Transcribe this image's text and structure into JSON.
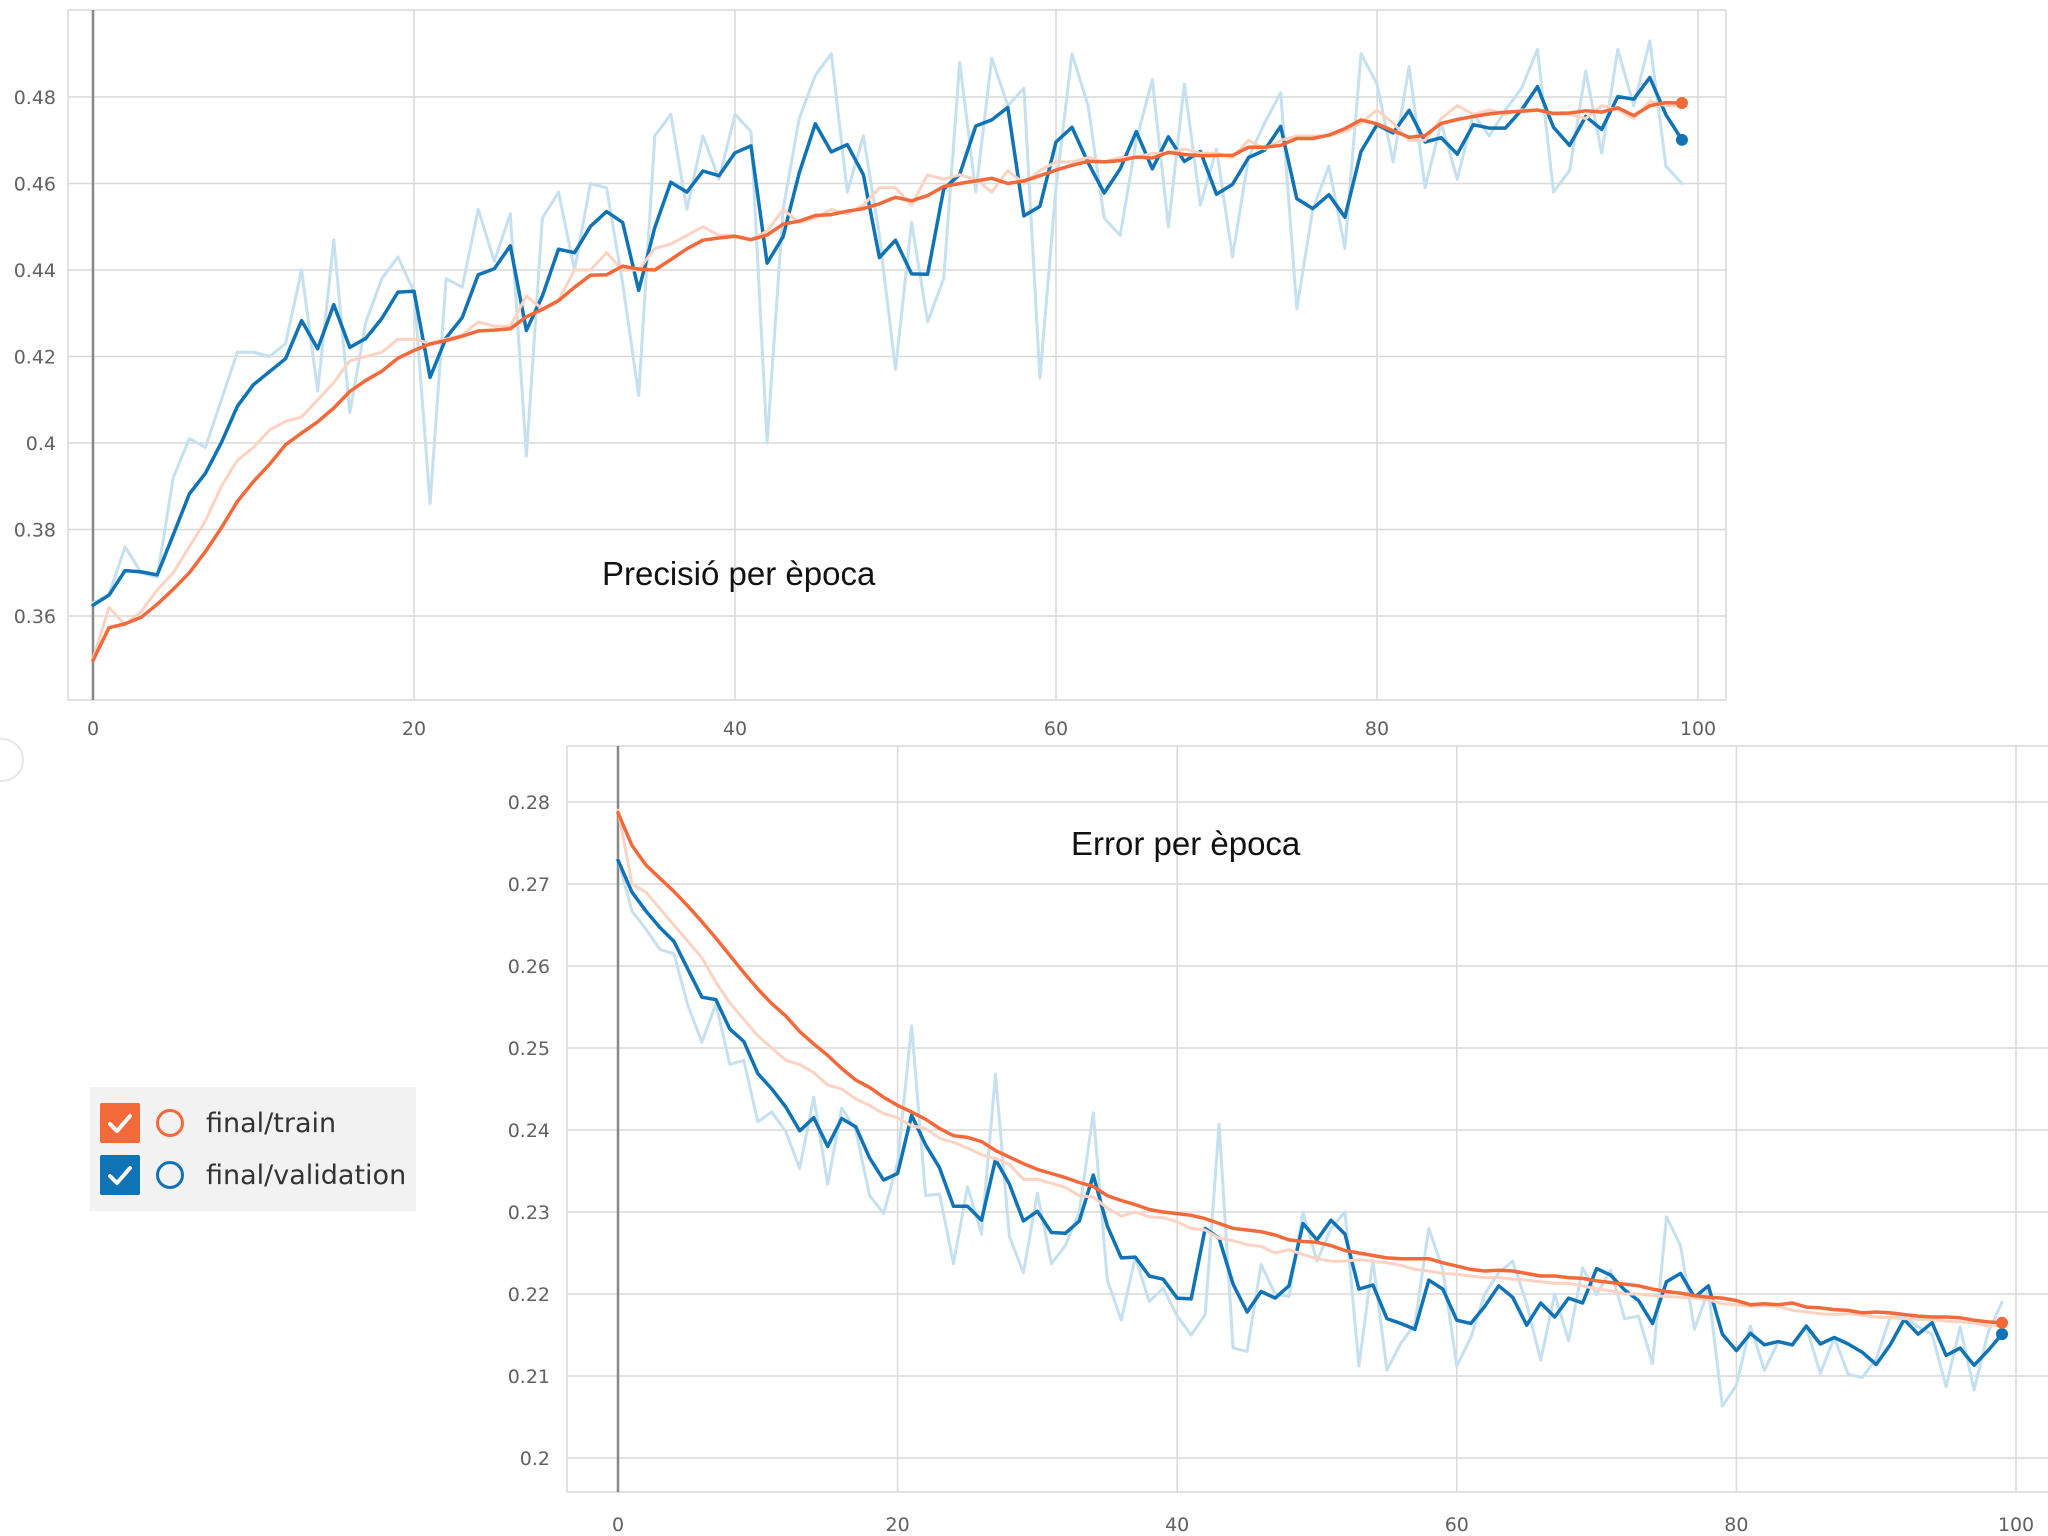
{
  "legend": {
    "items": [
      {
        "label": "final/train",
        "color": "#f4693a",
        "checked": true
      },
      {
        "label": "final/validation",
        "color": "#0f73b5",
        "checked": true
      }
    ]
  },
  "styles": {
    "train_color": "#f4693a",
    "train_raw_color": "#fcd3c3",
    "validation_color": "#0f73b5",
    "validation_raw_color": "#c5e0ee",
    "grid_color": "#d9d9d9",
    "axis_color": "#888888"
  },
  "chart_data": [
    {
      "type": "line",
      "title": "Precisió per època",
      "xlabel": "",
      "ylabel": "",
      "xlim": [
        0,
        100
      ],
      "ylim": [
        0.346,
        0.4985
      ],
      "xticks": [
        "0",
        "20",
        "40",
        "60",
        "80",
        "100"
      ],
      "yticks": [
        "0.36",
        "0.38",
        "0.4",
        "0.42",
        "0.44",
        "0.46",
        "0.48"
      ],
      "grid": true,
      "series": [
        {
          "name": "final/validation",
          "kind": "raw",
          "x_start": 0,
          "values": [
            0.363,
            0.365,
            0.376,
            0.37,
            0.369,
            0.392,
            0.401,
            0.399,
            0.41,
            0.421,
            0.421,
            0.42,
            0.423,
            0.44,
            0.412,
            0.447,
            0.407,
            0.428,
            0.438,
            0.443,
            0.435,
            0.386,
            0.438,
            0.436,
            0.454,
            0.442,
            0.453,
            0.397,
            0.452,
            0.458,
            0.44,
            0.46,
            0.459,
            0.437,
            0.411,
            0.471,
            0.476,
            0.454,
            0.471,
            0.461,
            0.476,
            0.472,
            0.4,
            0.454,
            0.475,
            0.485,
            0.49,
            0.458,
            0.471,
            0.448,
            0.417,
            0.451,
            0.428,
            0.438,
            0.488,
            0.458,
            0.489,
            0.478,
            0.482,
            0.415,
            0.459,
            0.49,
            0.478,
            0.452,
            0.448,
            0.47,
            0.484,
            0.45,
            0.483,
            0.455,
            0.468,
            0.443,
            0.466,
            0.474,
            0.481,
            0.431,
            0.454,
            0.464,
            0.445,
            0.49,
            0.483,
            0.465,
            0.487,
            0.459,
            0.474,
            0.461,
            0.476,
            0.471,
            0.477,
            0.482,
            0.491,
            0.458,
            0.463,
            0.486,
            0.467,
            0.491,
            0.478,
            0.493,
            0.464,
            0.46
          ]
        },
        {
          "name": "final/validation",
          "kind": "smoothed",
          "x_start": 0,
          "values": [
            0.3625,
            0.3648,
            0.3705,
            0.3702,
            0.3695,
            0.3788,
            0.3882,
            0.393,
            0.4001,
            0.4085,
            0.4135,
            0.4165,
            0.4195,
            0.4283,
            0.4218,
            0.432,
            0.4221,
            0.4242,
            0.4288,
            0.4349,
            0.4351,
            0.4152,
            0.4243,
            0.429,
            0.4389,
            0.4403,
            0.4456,
            0.426,
            0.434,
            0.4448,
            0.444,
            0.4501,
            0.4535,
            0.451,
            0.4353,
            0.4498,
            0.4603,
            0.458,
            0.4629,
            0.4618,
            0.4671,
            0.4687,
            0.4416,
            0.4477,
            0.4624,
            0.4738,
            0.4673,
            0.469,
            0.462,
            0.4429,
            0.4469,
            0.4391,
            0.439,
            0.4587,
            0.4621,
            0.4733,
            0.4747,
            0.4776,
            0.4525,
            0.4547,
            0.4696,
            0.473,
            0.4648,
            0.4578,
            0.4634,
            0.472,
            0.4634,
            0.4708,
            0.4651,
            0.4674,
            0.4575,
            0.4598,
            0.466,
            0.4677,
            0.4732,
            0.4565,
            0.4542,
            0.4574,
            0.4522,
            0.4674,
            0.4736,
            0.4717,
            0.4769,
            0.4696,
            0.4706,
            0.4668,
            0.4736,
            0.4728,
            0.4728,
            0.477,
            0.4824,
            0.473,
            0.4688,
            0.4755,
            0.4725,
            0.4801,
            0.4795,
            0.4845,
            0.4759,
            0.4701
          ]
        },
        {
          "name": "final/train",
          "kind": "raw",
          "x_start": 0,
          "values": [
            0.35,
            0.362,
            0.358,
            0.361,
            0.366,
            0.37,
            0.376,
            0.382,
            0.39,
            0.396,
            0.399,
            0.403,
            0.405,
            0.406,
            0.41,
            0.414,
            0.419,
            0.42,
            0.421,
            0.424,
            0.424,
            0.423,
            0.424,
            0.425,
            0.428,
            0.427,
            0.427,
            0.434,
            0.431,
            0.433,
            0.44,
            0.44,
            0.444,
            0.44,
            0.44,
            0.445,
            0.446,
            0.448,
            0.45,
            0.448,
            0.448,
            0.447,
            0.449,
            0.454,
            0.451,
            0.452,
            0.454,
            0.453,
            0.455,
            0.459,
            0.459,
            0.455,
            0.462,
            0.461,
            0.462,
            0.461,
            0.458,
            0.463,
            0.46,
            0.463,
            0.465,
            0.465,
            0.466,
            0.465,
            0.466,
            0.466,
            0.467,
            0.467,
            0.468,
            0.467,
            0.467,
            0.466,
            0.47,
            0.468,
            0.47,
            0.471,
            0.471,
            0.471,
            0.472,
            0.474,
            0.477,
            0.474,
            0.47,
            0.47,
            0.475,
            0.478,
            0.476,
            0.477,
            0.476,
            0.477,
            0.477,
            0.476,
            0.476,
            0.475,
            0.478,
            0.477,
            0.475,
            0.479,
            0.478,
            0.478
          ]
        },
        {
          "name": "final/train",
          "kind": "smoothed",
          "x_start": 0,
          "values": [
            0.3497,
            0.3573,
            0.3582,
            0.3597,
            0.3627,
            0.3662,
            0.37,
            0.3749,
            0.3804,
            0.3865,
            0.3911,
            0.3951,
            0.3996,
            0.4023,
            0.4049,
            0.4081,
            0.4119,
            0.4145,
            0.4166,
            0.4196,
            0.4214,
            0.4229,
            0.4237,
            0.4247,
            0.4259,
            0.4261,
            0.4264,
            0.4292,
            0.4309,
            0.4329,
            0.436,
            0.4388,
            0.4389,
            0.4409,
            0.4402,
            0.44,
            0.4424,
            0.4449,
            0.4469,
            0.4474,
            0.4478,
            0.447,
            0.4481,
            0.4506,
            0.4513,
            0.4526,
            0.4528,
            0.4536,
            0.4542,
            0.4553,
            0.4568,
            0.456,
            0.4572,
            0.4593,
            0.46,
            0.4606,
            0.4612,
            0.46,
            0.4606,
            0.4618,
            0.4631,
            0.4642,
            0.4651,
            0.465,
            0.4653,
            0.4661,
            0.4659,
            0.4672,
            0.4667,
            0.4664,
            0.4665,
            0.4665,
            0.4684,
            0.4684,
            0.4688,
            0.4704,
            0.4704,
            0.4712,
            0.4727,
            0.4747,
            0.4738,
            0.4722,
            0.4707,
            0.4711,
            0.4739,
            0.4748,
            0.4755,
            0.4761,
            0.4765,
            0.4767,
            0.477,
            0.4762,
            0.4763,
            0.4768,
            0.4765,
            0.4775,
            0.4757,
            0.478,
            0.4787,
            0.4786
          ]
        }
      ]
    },
    {
      "type": "line",
      "title": "Error per època",
      "xlabel": "",
      "ylabel": "",
      "xlim": [
        0,
        100
      ],
      "ylim": [
        0.1966,
        0.2861
      ],
      "xticks": [
        "0",
        "20",
        "40",
        "60",
        "80",
        "100"
      ],
      "yticks": [
        "0.2",
        "0.21",
        "0.22",
        "0.23",
        "0.24",
        "0.25",
        "0.26",
        "0.27",
        "0.28"
      ],
      "grid": true,
      "series": [
        {
          "name": "final/validation",
          "kind": "raw",
          "x_start": 0,
          "values": [
            0.273,
            0.2667,
            0.2645,
            0.262,
            0.2615,
            0.2552,
            0.2507,
            0.2554,
            0.248,
            0.2485,
            0.241,
            0.2422,
            0.2398,
            0.2353,
            0.244,
            0.2334,
            0.2427,
            0.24,
            0.232,
            0.2298,
            0.236,
            0.2527,
            0.232,
            0.2322,
            0.2237,
            0.2331,
            0.2273,
            0.2468,
            0.227,
            0.2226,
            0.2323,
            0.2237,
            0.2259,
            0.23,
            0.2421,
            0.2217,
            0.2168,
            0.2245,
            0.2191,
            0.2207,
            0.2173,
            0.215,
            0.2175,
            0.2407,
            0.2134,
            0.213,
            0.2236,
            0.22,
            0.2197,
            0.23,
            0.224,
            0.228,
            0.23,
            0.2112,
            0.2241,
            0.2107,
            0.214,
            0.2163,
            0.228,
            0.223,
            0.2112,
            0.2147,
            0.22,
            0.2226,
            0.224,
            0.2188,
            0.2119,
            0.22,
            0.2143,
            0.2232,
            0.2199,
            0.2229,
            0.217,
            0.2173,
            0.2115,
            0.2294,
            0.2259,
            0.2157,
            0.2205,
            0.2063,
            0.2089,
            0.2161,
            0.2107,
            0.2142,
            0.2137,
            0.216,
            0.2103,
            0.2147,
            0.2102,
            0.2098,
            0.2121,
            0.2172,
            0.2173,
            0.216,
            0.2151,
            0.2087,
            0.216,
            0.2083,
            0.2153,
            0.219
          ]
        },
        {
          "name": "final/validation",
          "kind": "smoothed",
          "x_start": 0,
          "values": [
            0.2729,
            0.269,
            0.2667,
            0.2647,
            0.263,
            0.2596,
            0.2562,
            0.2559,
            0.2523,
            0.2508,
            0.2469,
            0.245,
            0.2428,
            0.2399,
            0.2415,
            0.238,
            0.2414,
            0.2404,
            0.2366,
            0.2339,
            0.2347,
            0.2418,
            0.2382,
            0.2354,
            0.2307,
            0.2307,
            0.229,
            0.2364,
            0.2334,
            0.2289,
            0.2301,
            0.2275,
            0.2274,
            0.2289,
            0.2345,
            0.2283,
            0.2244,
            0.2245,
            0.2222,
            0.2218,
            0.2195,
            0.2194,
            0.228,
            0.2268,
            0.2212,
            0.2178,
            0.2203,
            0.2195,
            0.221,
            0.2286,
            0.2266,
            0.229,
            0.2273,
            0.2206,
            0.2211,
            0.217,
            0.2164,
            0.2157,
            0.2217,
            0.2206,
            0.2168,
            0.2164,
            0.2185,
            0.221,
            0.2196,
            0.2162,
            0.2189,
            0.2172,
            0.2195,
            0.2189,
            0.2231,
            0.2223,
            0.2205,
            0.2192,
            0.2164,
            0.2215,
            0.2225,
            0.2196,
            0.221,
            0.2151,
            0.2131,
            0.2152,
            0.2138,
            0.2142,
            0.2138,
            0.2161,
            0.2139,
            0.2147,
            0.2139,
            0.2129,
            0.2114,
            0.2138,
            0.2169,
            0.2151,
            0.2165,
            0.2125,
            0.2134,
            0.2113,
            0.2131,
            0.2151
          ]
        },
        {
          "name": "final/train",
          "kind": "raw",
          "x_start": 0,
          "values": [
            0.279,
            0.27,
            0.269,
            0.267,
            0.265,
            0.263,
            0.261,
            0.258,
            0.2555,
            0.2535,
            0.2515,
            0.25,
            0.2485,
            0.248,
            0.247,
            0.2455,
            0.245,
            0.2438,
            0.243,
            0.242,
            0.2415,
            0.2405,
            0.2402,
            0.239,
            0.2385,
            0.2378,
            0.237,
            0.2365,
            0.2358,
            0.234,
            0.234,
            0.2335,
            0.233,
            0.232,
            0.2318,
            0.2305,
            0.2295,
            0.23,
            0.2294,
            0.2293,
            0.2288,
            0.228,
            0.2278,
            0.2268,
            0.2265,
            0.226,
            0.2258,
            0.225,
            0.2254,
            0.2248,
            0.2243,
            0.224,
            0.224,
            0.2242,
            0.224,
            0.2238,
            0.2235,
            0.223,
            0.2228,
            0.2225,
            0.2224,
            0.2222,
            0.222,
            0.222,
            0.2218,
            0.2217,
            0.2215,
            0.2213,
            0.2213,
            0.221,
            0.2206,
            0.2204,
            0.22,
            0.22,
            0.2198,
            0.2197,
            0.2196,
            0.2195,
            0.2193,
            0.2188,
            0.2187,
            0.2185,
            0.2186,
            0.2185,
            0.218,
            0.2178,
            0.2176,
            0.2175,
            0.2176,
            0.2174,
            0.2172,
            0.2171,
            0.217,
            0.2169,
            0.2169,
            0.2167,
            0.2166,
            0.2165,
            0.2161,
            0.2162
          ]
        },
        {
          "name": "final/train",
          "kind": "smoothed",
          "x_start": 0,
          "values": [
            0.2787,
            0.2747,
            0.2723,
            0.2707,
            0.2691,
            0.2673,
            0.2654,
            0.2634,
            0.2613,
            0.2592,
            0.2572,
            0.2554,
            0.2539,
            0.252,
            0.2505,
            0.2491,
            0.2475,
            0.2461,
            0.2452,
            0.244,
            0.243,
            0.2422,
            0.2413,
            0.2402,
            0.2393,
            0.2391,
            0.2386,
            0.2375,
            0.2367,
            0.2359,
            0.2352,
            0.2347,
            0.2342,
            0.2336,
            0.2331,
            0.232,
            0.2314,
            0.2309,
            0.2303,
            0.23,
            0.2298,
            0.2296,
            0.2292,
            0.2286,
            0.228,
            0.2278,
            0.2276,
            0.2272,
            0.2266,
            0.2264,
            0.2263,
            0.2259,
            0.2253,
            0.225,
            0.2247,
            0.2244,
            0.2243,
            0.2243,
            0.2243,
            0.2238,
            0.2234,
            0.223,
            0.2228,
            0.2229,
            0.2228,
            0.2225,
            0.2222,
            0.2222,
            0.222,
            0.2219,
            0.2216,
            0.2214,
            0.2212,
            0.221,
            0.2206,
            0.2203,
            0.2201,
            0.2198,
            0.2196,
            0.2195,
            0.2192,
            0.2187,
            0.2188,
            0.2187,
            0.2189,
            0.2184,
            0.2183,
            0.2181,
            0.218,
            0.2177,
            0.2178,
            0.2177,
            0.2175,
            0.2173,
            0.2172,
            0.2172,
            0.2171,
            0.2168,
            0.2166,
            0.2165
          ]
        }
      ]
    }
  ]
}
